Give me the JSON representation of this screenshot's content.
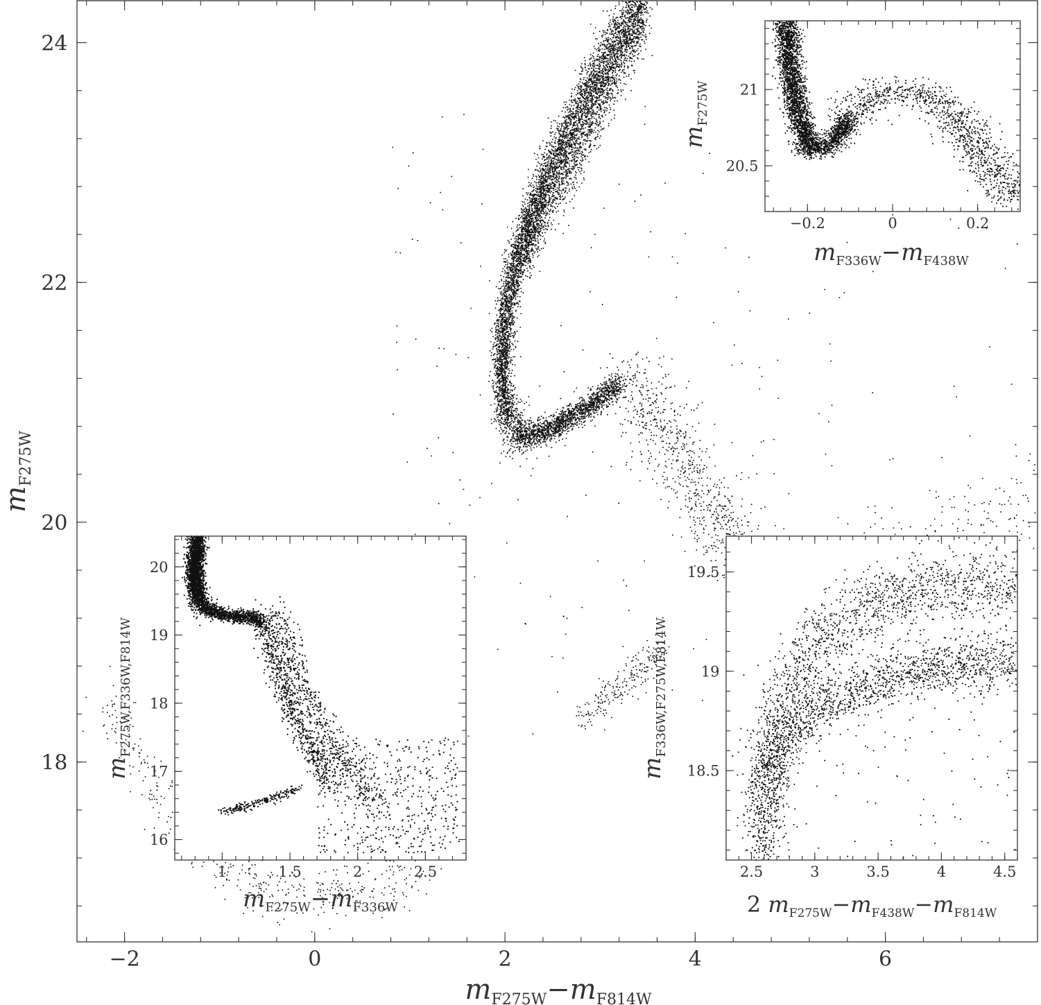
{
  "chart_data": [
    {
      "id": "main",
      "type": "scatter",
      "xlabel": {
        "m": "m",
        "sub1": "F275W",
        "minus": "−",
        "m2": "m",
        "sub2": "F814W"
      },
      "ylabel": {
        "m": "m",
        "sub": "F275W"
      },
      "xlim": [
        -2.5,
        7.6
      ],
      "ylim": [
        24.35,
        16.5
      ],
      "xticks": [
        -2,
        0,
        2,
        4,
        6
      ],
      "xticklabels": [
        "−2",
        "0",
        "2",
        "4",
        "6"
      ],
      "yticks": [
        18,
        20,
        22,
        24
      ],
      "yticklabels": [
        "18",
        "20",
        "22",
        "24"
      ],
      "seed": 7,
      "components": [
        {
          "kind": "curve",
          "name": "main-sequence-turnoff-and-upper-ms",
          "n": 5200,
          "spread": 0.05,
          "sy": 0.12,
          "pts": [
            [
              2.18,
              20.75
            ],
            [
              2.05,
              20.85
            ],
            [
              1.98,
              21.0
            ],
            [
              1.97,
              21.3
            ],
            [
              2.0,
              21.7
            ],
            [
              2.1,
              22.1
            ],
            [
              2.25,
              22.5
            ],
            [
              2.45,
              22.9
            ],
            [
              2.7,
              23.3
            ],
            [
              2.95,
              23.7
            ],
            [
              3.25,
              24.1
            ],
            [
              3.45,
              24.35
            ]
          ]
        },
        {
          "kind": "curve",
          "name": "subgiant-branch",
          "n": 1600,
          "spread": 0.04,
          "sy": 0.05,
          "pts": [
            [
              2.15,
              20.72
            ],
            [
              2.4,
              20.75
            ],
            [
              2.7,
              20.88
            ],
            [
              3.0,
              21.03
            ],
            [
              3.2,
              21.15
            ]
          ]
        },
        {
          "kind": "curve",
          "name": "main-sequence-second-sequence",
          "n": 1500,
          "spread": 0.05,
          "sy": 0.12,
          "pts": [
            [
              2.15,
              22.2
            ],
            [
              2.4,
              22.6
            ],
            [
              2.7,
              23.0
            ],
            [
              2.95,
              23.4
            ],
            [
              3.2,
              23.8
            ],
            [
              3.45,
              24.2
            ]
          ]
        },
        {
          "kind": "curve",
          "name": "red-giant-branch",
          "n": 900,
          "spread": 0.18,
          "sy": 0.15,
          "pts": [
            [
              3.3,
              21.2
            ],
            [
              3.6,
              20.9
            ],
            [
              3.85,
              20.5
            ],
            [
              4.05,
              20.2
            ],
            [
              4.3,
              19.9
            ],
            [
              4.6,
              19.65
            ],
            [
              4.8,
              19.5
            ]
          ]
        },
        {
          "kind": "curve",
          "name": "rgb-tip-extension",
          "n": 320,
          "spread": 0.15,
          "sy": 0.18,
          "pts": [
            [
              4.8,
              19.5
            ],
            [
              5.4,
              19.6
            ],
            [
              6.0,
              19.7
            ],
            [
              6.6,
              19.8
            ],
            [
              7.2,
              20.05
            ],
            [
              7.55,
              20.3
            ]
          ]
        },
        {
          "kind": "curve",
          "name": "red-horizontal-branch-clump",
          "n": 210,
          "spread": 0.05,
          "sy": 0.07,
          "pts": [
            [
              2.8,
              18.35
            ],
            [
              3.1,
              18.55
            ],
            [
              3.4,
              18.75
            ],
            [
              3.65,
              18.95
            ]
          ]
        },
        {
          "kind": "curve",
          "name": "blue-horizontal-branch",
          "n": 430,
          "spread": 0.1,
          "sy": 0.12,
          "pts": [
            [
              -2.2,
              18.5
            ],
            [
              -1.8,
              17.9
            ],
            [
              -1.4,
              17.5
            ],
            [
              -1.0,
              17.15
            ],
            [
              -0.5,
              16.95
            ],
            [
              0.0,
              16.85
            ],
            [
              0.5,
              16.95
            ],
            [
              1.2,
              17.1
            ]
          ]
        },
        {
          "kind": "uniform",
          "name": "field-stars",
          "n": 260,
          "xlim": [
            0.8,
            7.4
          ],
          "ylim": [
            18.2,
            23.5
          ]
        }
      ]
    },
    {
      "id": "inset-top-right",
      "type": "scatter",
      "xlabel": {
        "m": "m",
        "sub1": "F336W",
        "minus": "−",
        "m2": "m",
        "sub2": "F438W"
      },
      "ylabel": {
        "m": "m",
        "sub": "F275W"
      },
      "xlim": [
        -0.3,
        0.3
      ],
      "ylim": [
        21.45,
        20.2
      ],
      "xticks": [
        -0.2,
        0,
        0.2
      ],
      "xticklabels": [
        "−0.2",
        "0",
        "0.2"
      ],
      "yticks": [
        20.5,
        21
      ],
      "yticklabels": [
        "20.5",
        "21"
      ],
      "seed": 11,
      "components": [
        {
          "kind": "curve",
          "name": "inset-ms",
          "n": 2300,
          "spread": 0.014,
          "sy": 0.03,
          "pts": [
            [
              -0.19,
              20.62
            ],
            [
              -0.215,
              20.78
            ],
            [
              -0.23,
              20.95
            ],
            [
              -0.24,
              21.15
            ],
            [
              -0.25,
              21.45
            ]
          ]
        },
        {
          "kind": "curve",
          "name": "inset-turnoff",
          "n": 800,
          "spread": 0.012,
          "sy": 0.03,
          "pts": [
            [
              -0.22,
              20.62
            ],
            [
              -0.18,
              20.6
            ],
            [
              -0.14,
              20.65
            ],
            [
              -0.1,
              20.8
            ]
          ]
        },
        {
          "kind": "curve",
          "name": "inset-sgb",
          "n": 1100,
          "spread": 0.03,
          "sy": 0.05,
          "pts": [
            [
              -0.1,
              20.8
            ],
            [
              -0.05,
              20.95
            ],
            [
              0.0,
              21.0
            ],
            [
              0.08,
              20.98
            ],
            [
              0.15,
              20.8
            ],
            [
              0.22,
              20.55
            ],
            [
              0.28,
              20.3
            ]
          ]
        }
      ]
    },
    {
      "id": "inset-bottom-left",
      "type": "scatter",
      "xlabel": {
        "m": "m",
        "sub1": "F275W",
        "minus": "−",
        "m2": "m",
        "sub2": "F336W"
      },
      "ylabel": {
        "m": "m",
        "sub": "F275W,F336W,F814W"
      },
      "xlim": [
        0.65,
        2.8
      ],
      "ylim": [
        20.45,
        15.7
      ],
      "xticks": [
        1,
        1.5,
        2,
        2.5
      ],
      "xticklabels": [
        "1",
        "1.5",
        "2",
        "2.5"
      ],
      "yticks": [
        16,
        17,
        18,
        19,
        20
      ],
      "yticklabels": [
        "16",
        "17",
        "18",
        "19",
        "20"
      ],
      "seed": 23,
      "components": [
        {
          "kind": "curve",
          "name": "bl-ms",
          "n": 2300,
          "spread": 0.03,
          "sy": 0.1,
          "pts": [
            [
              0.85,
              19.45
            ],
            [
              0.8,
              19.7
            ],
            [
              0.8,
              20.0
            ],
            [
              0.82,
              20.45
            ]
          ]
        },
        {
          "kind": "curve",
          "name": "bl-sgb",
          "n": 900,
          "spread": 0.02,
          "sy": 0.05,
          "pts": [
            [
              0.86,
              19.4
            ],
            [
              1.0,
              19.3
            ],
            [
              1.2,
              19.25
            ],
            [
              1.3,
              19.2
            ]
          ]
        },
        {
          "kind": "curve",
          "name": "bl-rgb-blue",
          "n": 650,
          "spread": 0.04,
          "sy": 0.08,
          "pts": [
            [
              1.3,
              19.2
            ],
            [
              1.38,
              18.7
            ],
            [
              1.45,
              18.2
            ],
            [
              1.55,
              17.7
            ],
            [
              1.7,
              17.2
            ],
            [
              1.8,
              16.8
            ]
          ]
        },
        {
          "kind": "curve",
          "name": "bl-rgb-red",
          "n": 650,
          "spread": 0.06,
          "sy": 0.1,
          "pts": [
            [
              1.35,
              19.4
            ],
            [
              1.48,
              18.8
            ],
            [
              1.58,
              18.2
            ],
            [
              1.75,
              17.6
            ],
            [
              1.95,
              17.0
            ],
            [
              2.15,
              16.5
            ]
          ]
        },
        {
          "kind": "curve",
          "name": "bl-hb",
          "n": 220,
          "spread": 0.02,
          "sy": 0.03,
          "pts": [
            [
              1.0,
              16.4
            ],
            [
              1.2,
              16.5
            ],
            [
              1.4,
              16.62
            ],
            [
              1.55,
              16.75
            ]
          ]
        },
        {
          "kind": "uniform",
          "name": "bl-field",
          "n": 500,
          "xlim": [
            1.7,
            2.75
          ],
          "ylim": [
            15.8,
            17.5
          ]
        }
      ]
    },
    {
      "id": "inset-bottom-right",
      "type": "scatter",
      "xlabel": {
        "pre": "2 ",
        "m": "m",
        "sub1": "F275W",
        "minus": "−",
        "m2": "m",
        "sub2": "F438W",
        "minus2": "−",
        "m3": "m",
        "sub3": "F814W"
      },
      "ylabel": {
        "m": "m",
        "sub": "F336W,F275W,F814W"
      },
      "xlim": [
        2.3,
        4.6
      ],
      "ylim": [
        19.68,
        18.05
      ],
      "xticks": [
        2.5,
        3,
        3.5,
        4,
        4.5
      ],
      "xticklabels": [
        "2.5",
        "3",
        "3.5",
        "4",
        "4.5"
      ],
      "yticks": [
        18.5,
        19,
        19.5
      ],
      "yticklabels": [
        "18.5",
        "19",
        "19.5"
      ],
      "seed": 31,
      "components": [
        {
          "kind": "curve",
          "name": "br-upper-band",
          "n": 1800,
          "spread": 0.07,
          "sy": 0.07,
          "pts": [
            [
              2.63,
              18.05
            ],
            [
              2.6,
              18.3
            ],
            [
              2.65,
              18.55
            ],
            [
              2.8,
              18.7
            ],
            [
              3.1,
              18.85
            ],
            [
              3.5,
              18.95
            ],
            [
              4.0,
              19.02
            ],
            [
              4.6,
              19.05
            ]
          ]
        },
        {
          "kind": "curve",
          "name": "br-lower-band",
          "n": 1600,
          "spread": 0.1,
          "sy": 0.09,
          "pts": [
            [
              2.62,
              18.3
            ],
            [
              2.65,
              18.65
            ],
            [
              2.8,
              18.95
            ],
            [
              3.1,
              19.2
            ],
            [
              3.5,
              19.35
            ],
            [
              4.0,
              19.42
            ],
            [
              4.6,
              19.45
            ]
          ]
        },
        {
          "kind": "uniform",
          "name": "br-field",
          "n": 70,
          "xlim": [
            2.9,
            4.6
          ],
          "ylim": [
            18.05,
            18.8
          ]
        }
      ]
    }
  ]
}
